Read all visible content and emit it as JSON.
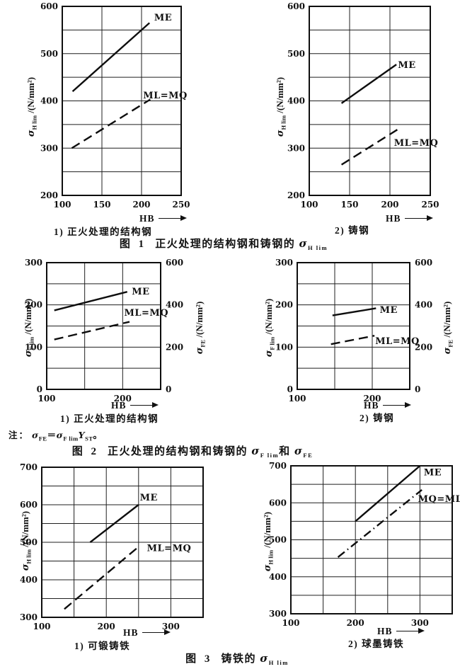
{
  "page": {
    "background": "#ffffff",
    "ink": "#111111"
  },
  "chart_data": [
    {
      "id": "fig1-normalized-structural-steel",
      "type": "line",
      "sublabel": "1) 正火处理的结构钢",
      "xlabel": "HB",
      "ylabel": "σ_H lim /(N/mm²)",
      "ylabel_parts": {
        "sym": "σ",
        "sub": "H lim",
        "unit": " /(N/mm²)"
      },
      "xlim": [
        100,
        250
      ],
      "ylim": [
        200,
        600
      ],
      "x_grid_step": 50,
      "y_grid_step": 50,
      "x_ticks": [
        100,
        150,
        200,
        250
      ],
      "y_ticks": [
        200,
        300,
        400,
        500,
        600
      ],
      "grid": true,
      "series": [
        {
          "name": "ME",
          "style": "solid",
          "points": [
            [
              113,
              420
            ],
            [
              210,
              565
            ]
          ],
          "label_xy": [
            216,
            570
          ]
        },
        {
          "name": "ML=MQ",
          "style": "dashed",
          "points": [
            [
              112,
              300
            ],
            [
              211,
              403
            ]
          ],
          "label_xy": [
            202,
            405
          ]
        }
      ],
      "layout": {
        "plot": [
          88,
          9,
          168,
          267
        ]
      }
    },
    {
      "id": "fig1-cast-steel",
      "type": "line",
      "sublabel": "2) 铸钢",
      "xlabel": "HB",
      "ylabel": "σ_H lim /(N/mm²)",
      "ylabel_parts": {
        "sym": "σ",
        "sub": "H lim",
        "unit": " /(N/mm²)"
      },
      "xlim": [
        100,
        250
      ],
      "ylim": [
        200,
        600
      ],
      "x_grid_step": 50,
      "y_grid_step": 50,
      "x_ticks": [
        100,
        150,
        200,
        250
      ],
      "y_ticks": [
        200,
        300,
        400,
        500,
        600
      ],
      "grid": true,
      "series": [
        {
          "name": "ME",
          "style": "solid",
          "points": [
            [
              140,
              395
            ],
            [
              208,
              477
            ]
          ],
          "label_xy": [
            210,
            470
          ]
        },
        {
          "name": "ML=MQ",
          "style": "dashed",
          "points": [
            [
              140,
              265
            ],
            [
              210,
              340
            ]
          ],
          "label_xy": [
            205,
            305
          ]
        }
      ],
      "layout": {
        "plot": [
          437,
          9,
          171,
          267
        ]
      }
    },
    {
      "id": "fig2-normalized-structural-steel",
      "type": "line",
      "sublabel": "1) 正火处理的结构钢",
      "xlabel": "HB",
      "ylabel": "σ_F lim /(N/mm²)",
      "ylabel_parts": {
        "sym": "σ",
        "sub": "F lim",
        "unit": " /(N/mm²)"
      },
      "y2label": "σ_FE /(N/mm²)",
      "y2label_parts": {
        "sym": "σ",
        "sub": "FE",
        "unit": " /(N/mm²)"
      },
      "xlim": [
        100,
        250
      ],
      "ylim": [
        0,
        300
      ],
      "x_grid_step": 50,
      "y_grid_step": 50,
      "x_ticks": [
        100,
        200
      ],
      "y_ticks": [
        0,
        100,
        200,
        300
      ],
      "y2_ticks": [
        [
          "0",
          0
        ],
        [
          "200",
          100
        ],
        [
          "400",
          200
        ],
        [
          "600",
          300
        ]
      ],
      "grid": true,
      "series": [
        {
          "name": "ME",
          "style": "solid",
          "points": [
            [
              110,
              187
            ],
            [
              206,
              231
            ]
          ],
          "label_xy": [
            212,
            225
          ]
        },
        {
          "name": "ML=MQ",
          "style": "dashed",
          "points": [
            [
              110,
              118
            ],
            [
              209,
              160
            ]
          ],
          "label_xy": [
            202,
            174
          ]
        }
      ],
      "layout": {
        "plot": [
          66,
          371,
          161,
          179
        ]
      }
    },
    {
      "id": "fig2-cast-steel",
      "type": "line",
      "sublabel": "2) 铸钢",
      "xlabel": "HB",
      "ylabel": "σ_F lim /(N/mm²)",
      "ylabel_parts": {
        "sym": "σ",
        "sub": "F lim",
        "unit": " /(N/mm²)"
      },
      "y2label": "σ_FE /(N/mm²)",
      "y2label_parts": {
        "sym": "σ",
        "sub": "FE",
        "unit": " /(N/mm²)"
      },
      "xlim": [
        100,
        250
      ],
      "ylim": [
        0,
        300
      ],
      "x_grid_step": 50,
      "y_grid_step": 50,
      "x_ticks": [
        100,
        200
      ],
      "y_ticks": [
        0,
        100,
        200,
        300
      ],
      "y2_ticks": [
        [
          "0",
          0
        ],
        [
          "200",
          100
        ],
        [
          "400",
          200
        ],
        [
          "600",
          300
        ]
      ],
      "grid": true,
      "series": [
        {
          "name": "ME",
          "style": "solid",
          "points": [
            [
              147,
              175
            ],
            [
              205,
              192
            ]
          ],
          "label_xy": [
            210,
            181
          ]
        },
        {
          "name": "ML=MQ",
          "style": "dashed",
          "points": [
            [
              145,
              107
            ],
            [
              203,
              127
            ]
          ],
          "label_xy": [
            204,
            107
          ]
        }
      ],
      "layout": {
        "plot": [
          420,
          371,
          159,
          179
        ]
      }
    },
    {
      "id": "fig3-malleable-cast-iron",
      "type": "line",
      "sublabel": "1) 可锻铸铁",
      "xlabel": "HB",
      "ylabel": "σ_H lim /(N/mm²)",
      "ylabel_parts": {
        "sym": "σ",
        "sub": "H lim",
        "unit": " /(N/mm²)"
      },
      "xlim": [
        100,
        350
      ],
      "ylim": [
        300,
        700
      ],
      "x_grid_step": 50,
      "y_grid_step": 50,
      "x_ticks": [
        100,
        200,
        300
      ],
      "y_ticks": [
        300,
        400,
        500,
        600,
        700
      ],
      "grid": true,
      "series": [
        {
          "name": "ME",
          "style": "solid",
          "points": [
            [
              175,
              500
            ],
            [
              250,
              600
            ]
          ],
          "label_xy": [
            252,
            611
          ]
        },
        {
          "name": "ML=MQ",
          "style": "dashed",
          "points": [
            [
              135,
              322
            ],
            [
              250,
              488
            ]
          ],
          "label_xy": [
            263,
            476
          ]
        }
      ],
      "layout": {
        "plot": [
          59,
          660,
          228,
          212
        ]
      }
    },
    {
      "id": "fig3-nodular-cast-iron",
      "type": "line",
      "sublabel": "2) 球墨铸铁",
      "xlabel": "HB",
      "ylabel": "σ_H lim /(N/mm²)",
      "ylabel_parts": {
        "sym": "σ",
        "sub": "H lim",
        "unit": " /(N/mm²)"
      },
      "xlim": [
        100,
        350
      ],
      "ylim": [
        300,
        700
      ],
      "x_grid_step": 50,
      "y_grid_step": 50,
      "x_ticks": [
        100,
        200,
        300
      ],
      "y_ticks": [
        300,
        400,
        500,
        600,
        700
      ],
      "grid": true,
      "series": [
        {
          "name": "ME",
          "style": "solid",
          "points": [
            [
              200,
              550
            ],
            [
              300,
              700
            ]
          ],
          "label_xy": [
            306,
            674
          ]
        },
        {
          "name": "MQ=ML",
          "style": "dashdot",
          "points": [
            [
              173,
              453
            ],
            [
              303,
              635
            ]
          ],
          "label_xy": [
            297,
            602
          ]
        }
      ],
      "layout": {
        "plot": [
          411,
          658,
          228,
          209
        ]
      }
    }
  ],
  "captions": [
    {
      "fig": "图 1",
      "text": "正火处理的结构钢和铸钢的 ",
      "sym": "σ",
      "sub": "H lim"
    },
    {
      "fig": "图 2",
      "text": "正火处理的结构钢和铸钢的 ",
      "sym1": "σ",
      "sub1": "F lim",
      "mid": "和 ",
      "sym2": "σ",
      "sub2": "FE"
    },
    {
      "fig": "图 3",
      "text": "铸铁的 ",
      "sym": "σ",
      "sub": "H lim"
    }
  ],
  "note": {
    "prefix": "注：",
    "s1": "σ",
    "s1sub": "FE",
    "eq": "＝",
    "s2": "σ",
    "s2sub": "F lim",
    "s3": "Y",
    "s3sub": "ST",
    "period": "。"
  }
}
